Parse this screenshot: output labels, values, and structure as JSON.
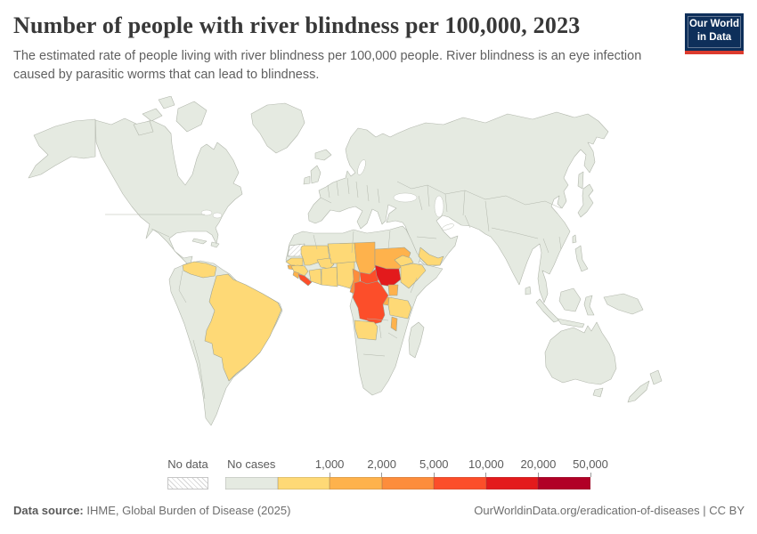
{
  "header": {
    "title": "Number of people with river blindness per 100,000, 2023",
    "subtitle": "The estimated rate of people living with river blindness per 100,000 people. River blindness is an eye infection caused by parasitic worms that can lead to blindness.",
    "logo": {
      "line1": "Our World",
      "line2": "in Data",
      "bg": "#0e2f5a",
      "accent": "#dc3b2e"
    }
  },
  "legend": {
    "no_data_label": "No data",
    "buckets": [
      {
        "key": "no_cases",
        "label": "No cases",
        "color": "#e5eae1"
      },
      {
        "key": "b1",
        "label": "1,000",
        "color": "#fed976"
      },
      {
        "key": "b2",
        "label": "2,000",
        "color": "#feb24c"
      },
      {
        "key": "b3",
        "label": "5,000",
        "color": "#fd8d3c"
      },
      {
        "key": "b4",
        "label": "10,000",
        "color": "#fc4e2a"
      },
      {
        "key": "b5",
        "label": "20,000",
        "color": "#e31a1c"
      },
      {
        "key": "b6",
        "label": "50,000",
        "color": "#b10026"
      }
    ]
  },
  "map": {
    "default_fill": "#e5eae1",
    "stroke": "#9aa092",
    "regions": {
      "western-sahara": "no_data",
      "senegal": "b1",
      "guinea": "b1",
      "mali": "b1",
      "burkina-faso": "b1",
      "cote-divoire": "b1",
      "ghana-togo-benin": "b1",
      "niger": "b1",
      "nigeria": "b1",
      "ethiopia": "b1",
      "eritrea": "b1",
      "angola": "b1",
      "tanzania": "b1",
      "brazil": "b1",
      "venezuela": "b1",
      "yemen": "b1",
      "guinea-bissau": "b2",
      "sierra-leone": "b2",
      "chad": "b2",
      "sudan": "b2",
      "uganda": "b2",
      "rwanda-burundi": "b2",
      "malawi": "b2",
      "cameroon": "b3",
      "liberia": "b4",
      "central-african-republic": "b4",
      "dr-congo": "b4",
      "south-sudan": "b5"
    }
  },
  "footer": {
    "source_label": "Data source:",
    "source_value": " IHME, Global Burden of Disease (2025)",
    "right": "OurWorldinData.org/eradication-of-diseases | CC BY"
  },
  "chart_data": {
    "type": "heatmap",
    "subtype": "choropleth-world-map",
    "title": "Number of people with river blindness per 100,000, 2023",
    "unit": "per 100,000 people",
    "year": 2023,
    "legend_position": "bottom",
    "bins": [
      {
        "range": "No data",
        "color": "hatched",
        "countries": [
          "Western Sahara"
        ]
      },
      {
        "range": "No cases",
        "color": "#e5eae1",
        "countries": [
          "All other countries shown in grey-green"
        ]
      },
      {
        "range": "0–1,000",
        "color": "#fed976",
        "countries": [
          "Brazil",
          "Venezuela",
          "Yemen",
          "Senegal",
          "Guinea",
          "Mali",
          "Burkina Faso",
          "Côte d'Ivoire",
          "Ghana",
          "Togo",
          "Benin",
          "Niger",
          "Nigeria",
          "Ethiopia",
          "Eritrea",
          "Angola",
          "Tanzania"
        ]
      },
      {
        "range": "1,000–2,000",
        "color": "#feb24c",
        "countries": [
          "Guinea-Bissau",
          "Sierra Leone",
          "Chad",
          "Sudan",
          "Uganda",
          "Rwanda",
          "Burundi",
          "Malawi"
        ]
      },
      {
        "range": "2,000–5,000",
        "color": "#fd8d3c",
        "countries": [
          "Cameroon"
        ]
      },
      {
        "range": "5,000–10,000",
        "color": "#fc4e2a",
        "countries": [
          "Liberia",
          "Central African Republic",
          "Democratic Republic of Congo"
        ]
      },
      {
        "range": "10,000–20,000",
        "color": "#e31a1c",
        "countries": [
          "South Sudan"
        ]
      },
      {
        "range": "20,000–50,000",
        "color": "#b10026",
        "countries": []
      }
    ]
  }
}
